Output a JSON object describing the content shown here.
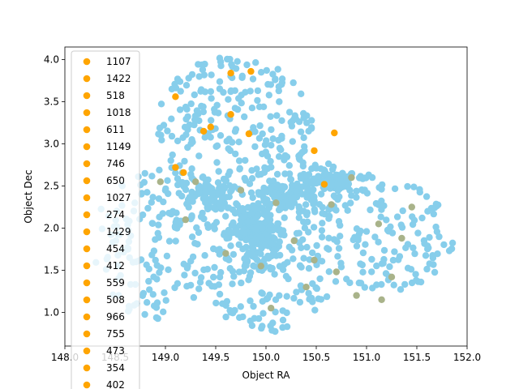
{
  "chart_data": {
    "type": "scatter",
    "title": "",
    "xlabel": "Object RA",
    "ylabel": "Object Dec",
    "xlim": [
      148.0,
      152.0
    ],
    "ylim": [
      0.6,
      4.15
    ],
    "xticks": [
      148.0,
      148.5,
      149.0,
      149.5,
      150.0,
      150.5,
      151.0,
      151.5,
      152.0
    ],
    "xtick_labels": [
      "148.0",
      "148.5",
      "149.0",
      "149.5",
      "150.0",
      "150.5",
      "151.0",
      "151.5",
      "152.0"
    ],
    "yticks": [
      1.0,
      1.5,
      2.0,
      2.5,
      3.0,
      3.5,
      4.0
    ],
    "ytick_labels": [
      "1.0",
      "1.5",
      "2.0",
      "2.5",
      "3.0",
      "3.5",
      "4.0"
    ],
    "grid": false,
    "legend": {
      "placement": "upper-left",
      "entries": [
        "1107",
        "1422",
        "518",
        "1018",
        "611",
        "1149",
        "746",
        "650",
        "1027",
        "274",
        "1429",
        "454",
        "412",
        "559",
        "508",
        "966",
        "755",
        "473",
        "354",
        "402"
      ]
    },
    "colors": {
      "main": "#87ceeb",
      "highlight": "#ffa500",
      "muted": "#a9b38a"
    },
    "series": [
      {
        "color": "#ffa500",
        "points": [
          [
            149.1,
            3.56
          ],
          [
            149.65,
            3.84
          ],
          [
            149.85,
            3.86
          ],
          [
            149.45,
            3.2
          ],
          [
            149.38,
            3.15
          ],
          [
            149.65,
            3.35
          ],
          [
            149.83,
            3.12
          ],
          [
            150.68,
            3.13
          ],
          [
            150.48,
            2.92
          ],
          [
            149.1,
            2.72
          ],
          [
            149.18,
            2.66
          ],
          [
            150.58,
            2.52
          ]
        ]
      },
      {
        "color": "#a9b38a",
        "points": [
          [
            148.95,
            2.55
          ],
          [
            149.3,
            2.55
          ],
          [
            150.4,
            1.3
          ],
          [
            151.12,
            2.05
          ],
          [
            151.35,
            1.88
          ],
          [
            151.15,
            1.15
          ],
          [
            150.48,
            1.62
          ],
          [
            150.7,
            1.48
          ],
          [
            150.1,
            2.3
          ],
          [
            151.25,
            1.42
          ],
          [
            150.9,
            1.2
          ],
          [
            149.75,
            2.45
          ],
          [
            150.28,
            1.85
          ],
          [
            149.95,
            1.55
          ],
          [
            150.65,
            2.28
          ],
          [
            149.2,
            2.1
          ],
          [
            150.85,
            2.6
          ],
          [
            151.45,
            2.25
          ],
          [
            149.6,
            1.7
          ],
          [
            150.05,
            1.05
          ]
        ]
      }
    ]
  }
}
